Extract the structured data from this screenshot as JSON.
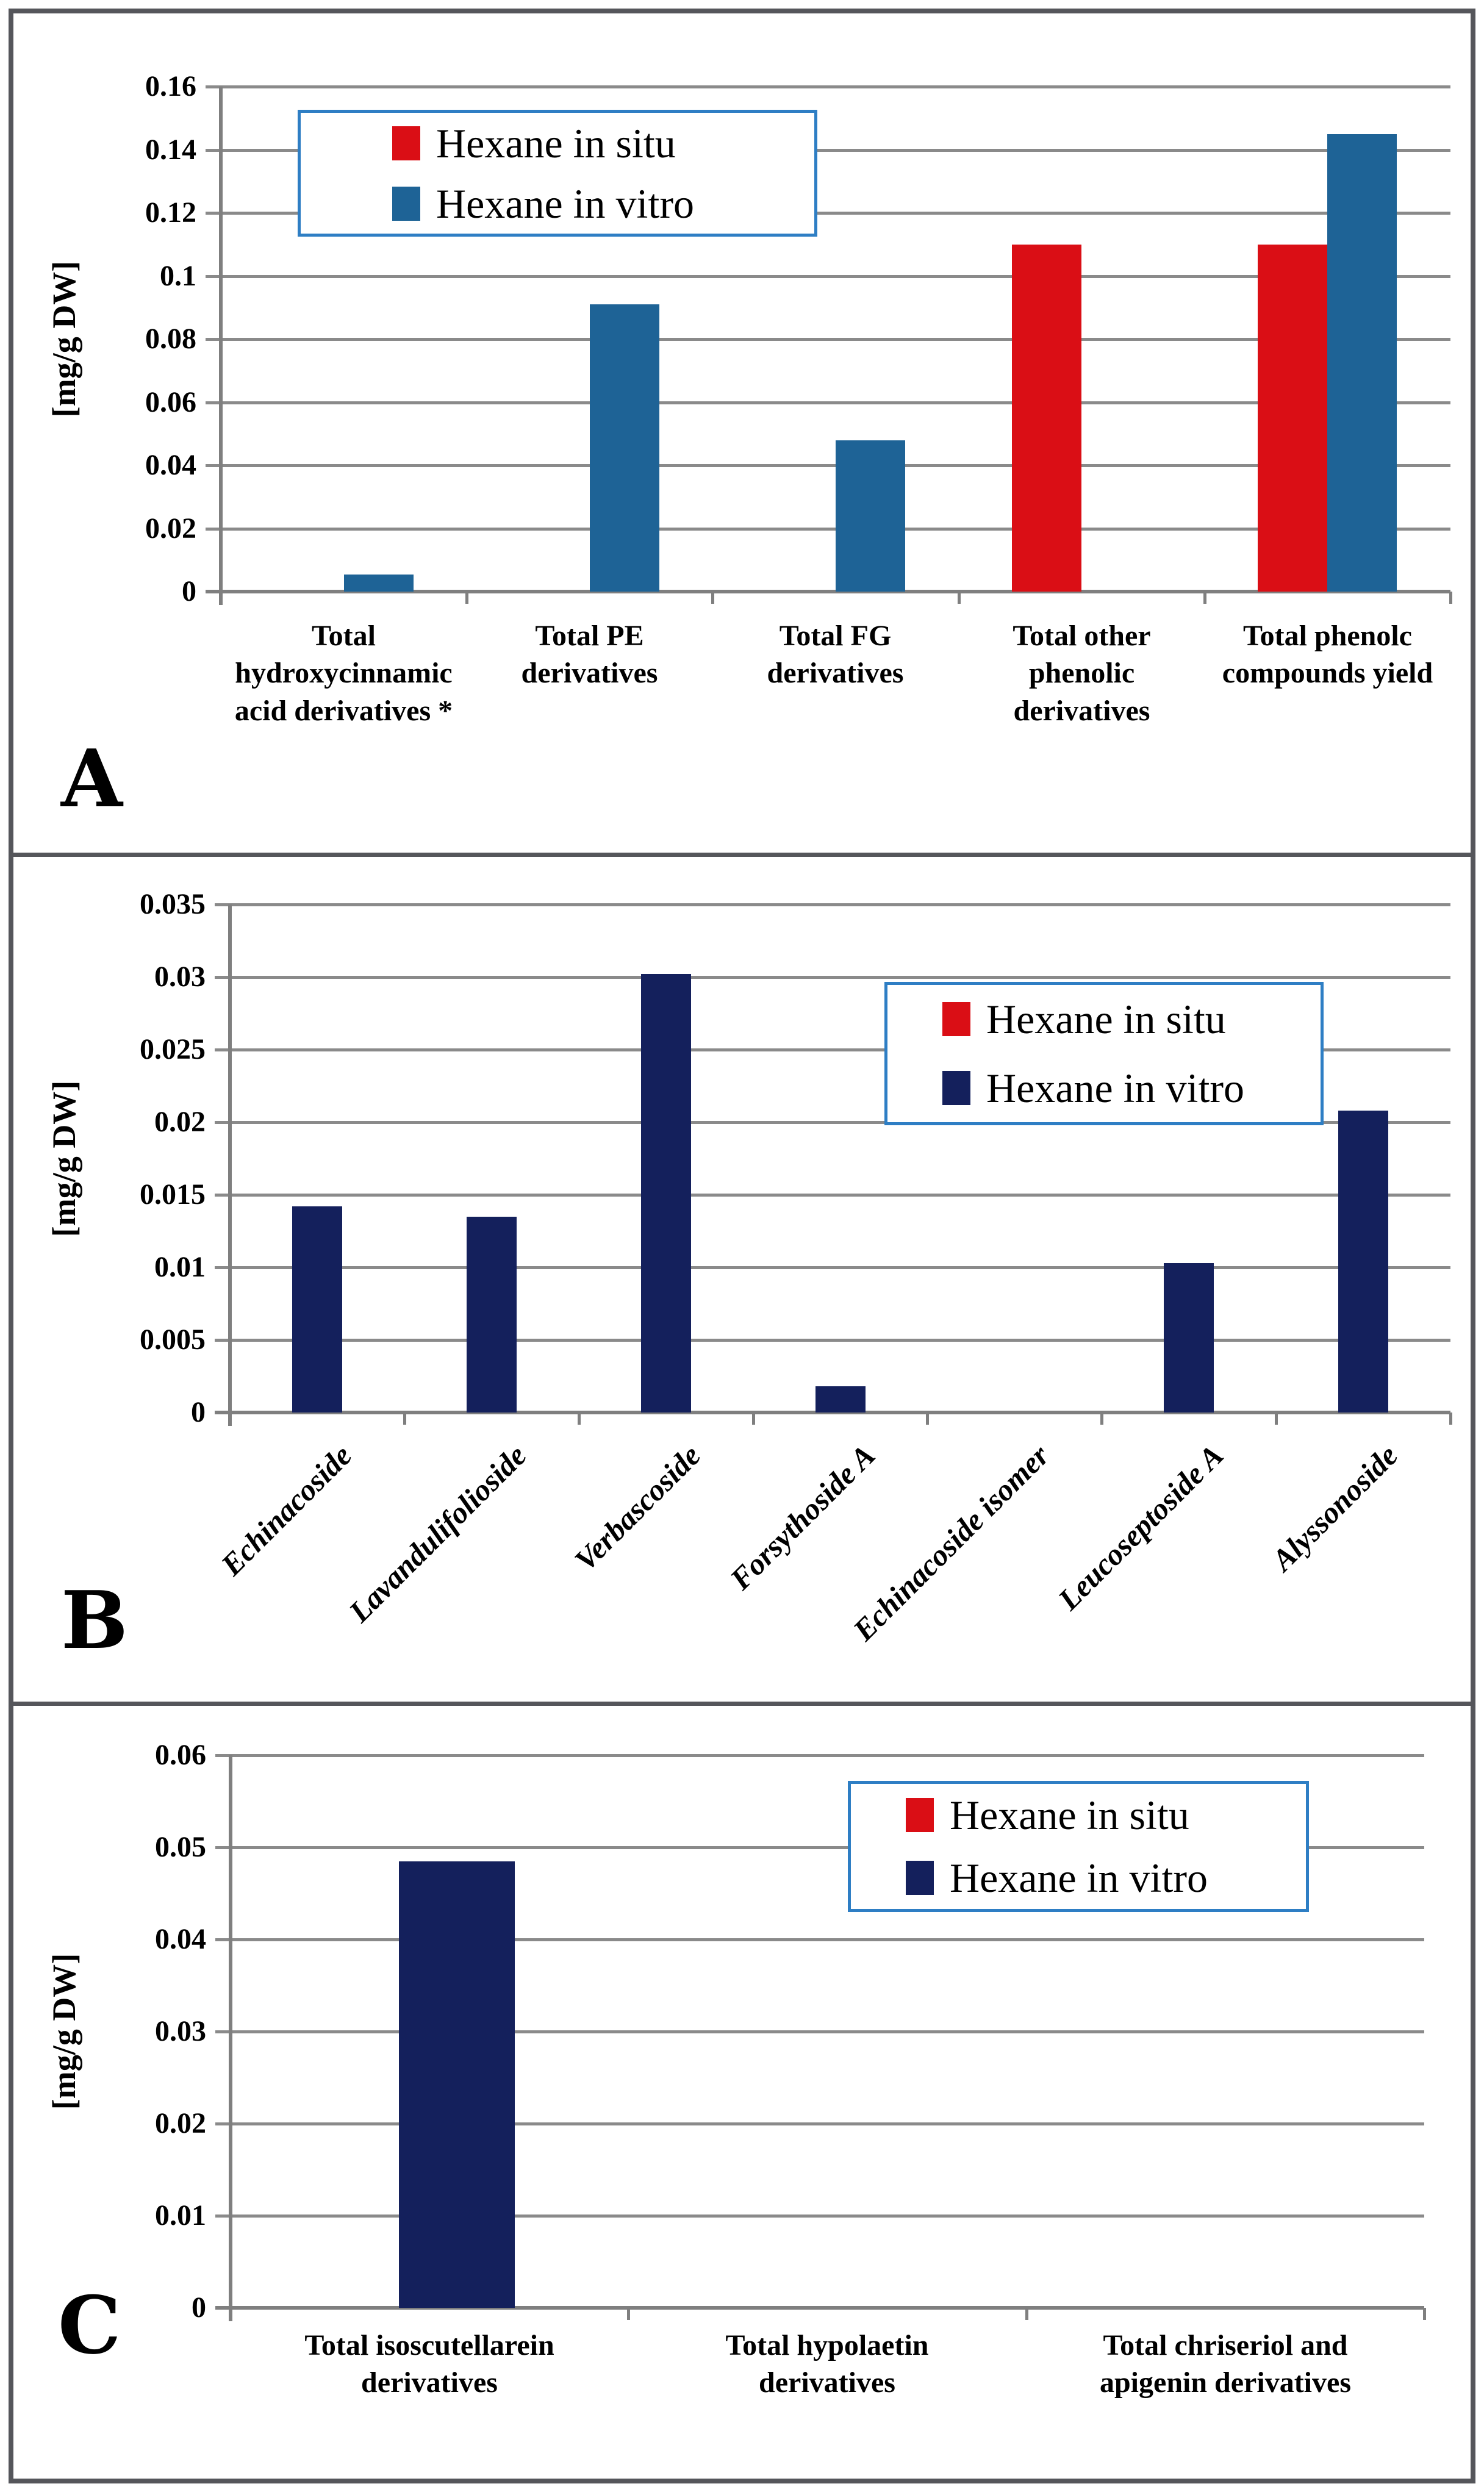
{
  "figure": {
    "background": "#ffffff",
    "panels": [
      {
        "letter": "A"
      },
      {
        "letter": "B"
      },
      {
        "letter": "C"
      }
    ]
  },
  "colors": {
    "grid": "#8a8a8a",
    "axis": "#7f7f7f",
    "frame_border": "#55565b",
    "legend_border": "#2e7ec4",
    "hexane_in_situ": "#da0e15",
    "hexane_in_vitro_panel_a": "#1e6396",
    "hexane_in_vitro_panel_bc": "#14205c"
  },
  "chart_data": [
    {
      "id": "A",
      "type": "bar",
      "title": "",
      "xlabel": "",
      "ylabel": "[mg/g DW]",
      "ylim": [
        0,
        0.16
      ],
      "ytick_step": 0.02,
      "yticks": [
        "0.16",
        "0.14",
        "0.12",
        "0.1",
        "0.08",
        "0.06",
        "0.04",
        "0.02",
        "0"
      ],
      "grid": true,
      "legend_position": "upper-left-inside",
      "categories": [
        "Total\nhydroxycinnamic\nacid derivatives *",
        "Total PE\nderivatives",
        "Total FG\nderivatives",
        "Total other\nphenolic\nderivatives",
        "Total phenolc\ncompounds yield"
      ],
      "series": [
        {
          "name": "Hexane in situ",
          "color": "#da0e15",
          "values": [
            0,
            0,
            0,
            0.11,
            0.11
          ]
        },
        {
          "name": "Hexane in vitro",
          "color": "#1e6396",
          "values": [
            0.0055,
            0.091,
            0.048,
            0,
            0.145
          ]
        }
      ]
    },
    {
      "id": "B",
      "type": "bar",
      "title": "",
      "xlabel": "",
      "ylabel": "[mg/g DW]",
      "ylim": [
        0,
        0.035
      ],
      "ytick_step": 0.005,
      "yticks": [
        "0.035",
        "0.03",
        "0.025",
        "0.02",
        "0.015",
        "0.01",
        "0.005",
        "0"
      ],
      "grid": true,
      "legend_position": "upper-right-inside",
      "label_rotation": 45,
      "categories": [
        "Echinacoside",
        "Lavandulifolioside",
        "Verbascoside",
        "Forsythoside A",
        "Echinacoside isomer",
        "Leucoseptoside A",
        "Alyssonoside"
      ],
      "series": [
        {
          "name": "Hexane in situ",
          "color": "#da0e15",
          "values": [
            0,
            0,
            0,
            0,
            0,
            0,
            0
          ]
        },
        {
          "name": "Hexane in vitro",
          "color": "#14205c",
          "values": [
            0.0142,
            0.0135,
            0.0302,
            0.0018,
            0,
            0.0103,
            0.0208
          ]
        }
      ]
    },
    {
      "id": "C",
      "type": "bar",
      "title": "",
      "xlabel": "",
      "ylabel": "[mg/g DW]",
      "ylim": [
        0,
        0.06
      ],
      "ytick_step": 0.01,
      "yticks": [
        "0.06",
        "0.05",
        "0.04",
        "0.03",
        "0.02",
        "0.01",
        "0"
      ],
      "grid": true,
      "legend_position": "upper-right-inside",
      "categories": [
        "Total isoscutellarein\nderivatives",
        "Total hypolaetin\nderivatives",
        "Total chriseriol and\napigenin derivatives"
      ],
      "series": [
        {
          "name": "Hexane in situ",
          "color": "#da0e15",
          "values": [
            0,
            0,
            0
          ]
        },
        {
          "name": "Hexane in vitro",
          "color": "#14205c",
          "values": [
            0.0485,
            0,
            0
          ]
        }
      ]
    }
  ]
}
